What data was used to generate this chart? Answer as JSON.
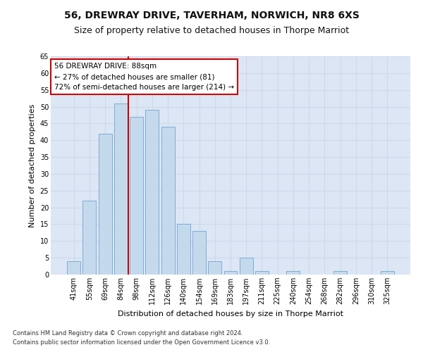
{
  "title": "56, DREWRAY DRIVE, TAVERHAM, NORWICH, NR8 6XS",
  "subtitle": "Size of property relative to detached houses in Thorpe Marriot",
  "xlabel": "Distribution of detached houses by size in Thorpe Marriot",
  "ylabel": "Number of detached properties",
  "categories": [
    "41sqm",
    "55sqm",
    "69sqm",
    "84sqm",
    "98sqm",
    "112sqm",
    "126sqm",
    "140sqm",
    "154sqm",
    "169sqm",
    "183sqm",
    "197sqm",
    "211sqm",
    "225sqm",
    "240sqm",
    "254sqm",
    "268sqm",
    "282sqm",
    "296sqm",
    "310sqm",
    "325sqm"
  ],
  "values": [
    4,
    22,
    42,
    51,
    47,
    49,
    44,
    15,
    13,
    4,
    1,
    5,
    1,
    0,
    1,
    0,
    0,
    1,
    0,
    0,
    1
  ],
  "bar_color": "#c5d9ed",
  "bar_edge_color": "#7bafd4",
  "vline_x": 3.5,
  "vline_color": "#cc0000",
  "annotation_line1": "56 DREWRAY DRIVE: 88sqm",
  "annotation_line2": "← 27% of detached houses are smaller (81)",
  "annotation_line3": "72% of semi-detached houses are larger (214) →",
  "annotation_box_color": "#ffffff",
  "annotation_box_edge": "#cc0000",
  "ylim": [
    0,
    65
  ],
  "yticks": [
    0,
    5,
    10,
    15,
    20,
    25,
    30,
    35,
    40,
    45,
    50,
    55,
    60,
    65
  ],
  "footer1": "Contains HM Land Registry data © Crown copyright and database right 2024.",
  "footer2": "Contains public sector information licensed under the Open Government Licence v3.0.",
  "title_fontsize": 10,
  "subtitle_fontsize": 9,
  "axis_label_fontsize": 8,
  "tick_fontsize": 7,
  "grid_color": "#ced8ea",
  "background_color": "#dce6f5"
}
